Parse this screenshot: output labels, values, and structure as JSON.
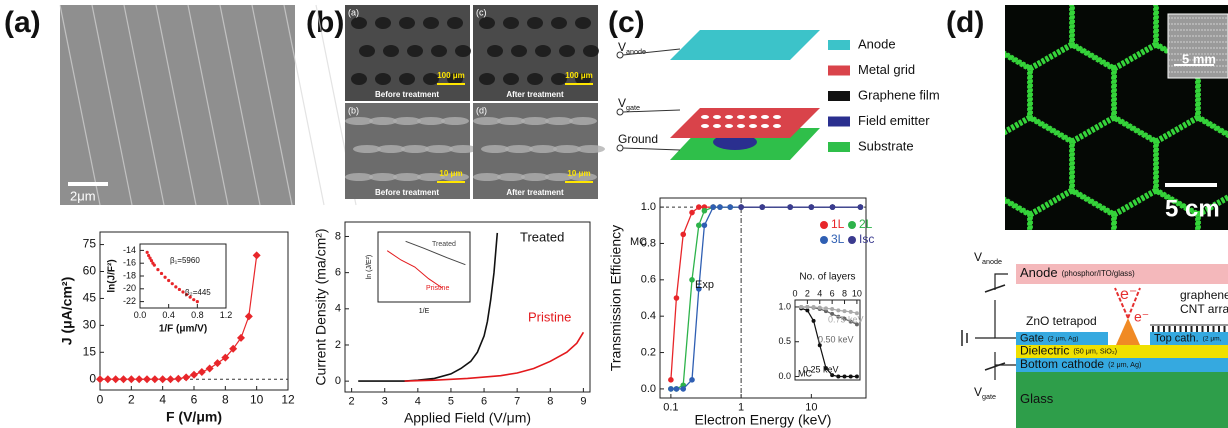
{
  "labels": [
    "(a)",
    "(b)",
    "(c)",
    "(d)"
  ],
  "panel_a": {
    "scale_bar": "2μm"
  },
  "panel_b": {
    "images": [
      {
        "tag": "(a)",
        "caption": "Before treatment",
        "scale_bar": "100 μm"
      },
      {
        "tag": "(c)",
        "caption": "After treatment",
        "scale_bar": "100 μm"
      },
      {
        "tag": "(b)",
        "caption": "Before treatment",
        "scale_bar": "10 μm"
      },
      {
        "tag": "(d)",
        "caption": "After treatment",
        "scale_bar": "10 μm"
      }
    ]
  },
  "panel_c": {
    "terminals": [
      {
        "symbol": "V",
        "sub": "anode"
      },
      {
        "symbol": "V",
        "sub": "gate"
      },
      {
        "symbol": "Ground"
      }
    ],
    "legend": [
      {
        "label": "Anode",
        "color": "#3cc3c9"
      },
      {
        "label": "Metal grid",
        "color": "#d9434a"
      },
      {
        "label": "Graphene film",
        "color": "#111111"
      },
      {
        "label": "Field emitter",
        "color": "#2a2f8f"
      },
      {
        "label": "Substrate",
        "color": "#2fbf4a"
      }
    ]
  },
  "panel_d": {
    "inset_scale_bar": "5 mm",
    "scale_bar": "5 cm",
    "terminals": [
      {
        "symbol": "V",
        "sub": "anode"
      },
      {
        "symbol": "V",
        "sub": "gate"
      }
    ],
    "electrons": [
      "e⁻",
      "e⁻"
    ],
    "callouts": [
      "ZnO tetrapod",
      "graphene",
      "CNT arra"
    ],
    "layers": [
      {
        "name": "Anode",
        "detail": "(phosphor/ITO/glass)",
        "color": "#f4b8bb"
      },
      {
        "name": "Gate",
        "detail": "(2 μm, Ag)",
        "color": "#35a9e0"
      },
      {
        "name": "Top cath.",
        "detail": "(2 μm,",
        "color": "#35a9e0"
      },
      {
        "name": "Dielectric",
        "detail": "(50 μm, SiO₂)",
        "color": "#f0e000"
      },
      {
        "name": "Bottom cathode",
        "detail": "(2 μm, Ag)",
        "color": "#35a9e0"
      },
      {
        "name": "Glass",
        "color": "#2e9e4a"
      }
    ]
  },
  "chart_data": [
    {
      "type": "line",
      "xlabel": "F (V/μm)",
      "ylabel": "J (μA/cm²)",
      "x": [
        0,
        0.5,
        1,
        1.5,
        2,
        2.5,
        3,
        3.5,
        4,
        4.5,
        5,
        5.5,
        6,
        6.5,
        7,
        7.5,
        8,
        8.5,
        9,
        9.5,
        10
      ],
      "series": [
        {
          "color": "#e8262a",
          "values": [
            0,
            0,
            0,
            0,
            0,
            0,
            0,
            0,
            0,
            0,
            0.3,
            1,
            2.5,
            4,
            6,
            9,
            12,
            17,
            23,
            35,
            69
          ]
        }
      ],
      "xlim": [
        0,
        12
      ],
      "xticks": [
        0,
        2,
        4,
        6,
        8,
        10,
        12
      ],
      "ylim": [
        -6,
        82
      ],
      "yticks": [
        0,
        15,
        30,
        45,
        60,
        75
      ],
      "hline": 0
    },
    {
      "type": "scatter",
      "xlabel": "1/F (μm/V)",
      "ylabel": "ln(J/F²)",
      "x": [
        0.1,
        0.12,
        0.14,
        0.16,
        0.18,
        0.2,
        0.25,
        0.3,
        0.35,
        0.4,
        0.45,
        0.5,
        0.55,
        0.6,
        0.65,
        0.7,
        0.75,
        0.8
      ],
      "series": [
        {
          "color": "#e8262a",
          "values": [
            -14.3,
            -14.8,
            -15.2,
            -15.6,
            -16,
            -16.3,
            -17,
            -17.6,
            -18.2,
            -18.7,
            -19.2,
            -19.7,
            -20.1,
            -20.5,
            -20.9,
            -21.3,
            -21.7,
            -22
          ]
        }
      ],
      "xlim": [
        0,
        1.2
      ],
      "xticks": [
        {
          "value": 0,
          "label": "0.0"
        },
        0.4,
        0.8,
        1.2
      ],
      "ylim": [
        -23,
        -13
      ],
      "yticks": [
        -14,
        -16,
        -18,
        -20,
        -22
      ],
      "annotations": [
        "β₁=5960",
        "β₂=445"
      ]
    },
    {
      "type": "line",
      "xlabel": "Applied Field (V/μm)",
      "ylabel": "Current Density (ma/cm²)",
      "series": [
        {
          "name": "Treated",
          "color": "#111111",
          "x": [
            2.2,
            3,
            3.6,
            4,
            4.5,
            5,
            5.3,
            5.6,
            5.8,
            6,
            6.1,
            6.2,
            6.3,
            6.4
          ],
          "values": [
            0,
            0,
            0,
            0.05,
            0.15,
            0.4,
            0.7,
            1.1,
            1.6,
            2.5,
            3.3,
            4.5,
            6,
            8.2
          ]
        },
        {
          "name": "Pristine",
          "color": "#e3191c",
          "x": [
            3.6,
            4.5,
            5.5,
            6.5,
            7,
            7.5,
            8,
            8.5,
            8.8,
            9
          ],
          "values": [
            0,
            0.05,
            0.15,
            0.3,
            0.45,
            0.7,
            1.1,
            1.6,
            2.1,
            2.7
          ]
        }
      ],
      "xlim": [
        1.8,
        9.2
      ],
      "xticks": [
        2,
        3,
        4,
        5,
        6,
        7,
        8,
        9
      ],
      "ylim": [
        -0.6,
        8.8
      ],
      "yticks": [
        0,
        2,
        4,
        6,
        8
      ]
    },
    {
      "type": "line",
      "xlabel": "1/E",
      "ylabel": "ln (J/E²)",
      "series": [
        {
          "name": "Treated",
          "color": "#444444",
          "x": [
            0.16,
            0.2,
            0.25,
            0.29
          ],
          "values": [
            -7,
            -8.5,
            -10.5,
            -12
          ]
        },
        {
          "name": "Pristine",
          "color": "#e3191c",
          "x": [
            0.12,
            0.15,
            0.18,
            0.21,
            0.24
          ],
          "values": [
            -9,
            -11,
            -12.5,
            -15,
            -17
          ]
        }
      ],
      "xlim": [
        0.1,
        0.3
      ],
      "ylim": [
        -20,
        -5
      ]
    },
    {
      "type": "line",
      "xscale": "log",
      "xlabel": "Electron Energy (keV)",
      "ylabel": "Transmission Efficiency",
      "x": [
        0.1,
        0.12,
        0.15,
        0.2,
        0.25,
        0.3,
        0.4,
        0.5,
        0.7,
        1,
        2,
        5,
        10,
        20,
        50
      ],
      "series": [
        {
          "name": "1L",
          "color": "#e8262a",
          "values": [
            0.05,
            0.5,
            0.85,
            0.97,
            1,
            1,
            1,
            1,
            1,
            1,
            1,
            1,
            1,
            1,
            1
          ]
        },
        {
          "name": "2L",
          "color": "#2db34a",
          "values": [
            0,
            0,
            0.02,
            0.6,
            0.9,
            0.98,
            1,
            1,
            1,
            1,
            1,
            1,
            1,
            1,
            1
          ]
        },
        {
          "name": "3L",
          "color": "#2f5fb3",
          "values": [
            0,
            0,
            0,
            0.05,
            0.55,
            0.9,
            1,
            1,
            1,
            1,
            1,
            1,
            1,
            1,
            1
          ]
        },
        {
          "name": "Isc",
          "color": "#3b3b8f",
          "values": [
            null,
            null,
            null,
            null,
            null,
            null,
            null,
            null,
            null,
            1,
            1,
            1,
            1,
            1,
            1
          ]
        }
      ],
      "xlim": [
        0.07,
        60
      ],
      "xticks": [
        0.1,
        1,
        10
      ],
      "ylim": [
        -0.05,
        1.05
      ],
      "yticks": [
        {
          "value": 0,
          "label": "0.0"
        },
        0.2,
        0.4,
        0.6,
        0.8,
        {
          "value": 1,
          "label": "1.0"
        }
      ],
      "hline": 1,
      "vline": 1,
      "annotations": [
        "MC",
        "Exp"
      ]
    },
    {
      "type": "line",
      "xlabel": "No. of layers",
      "x": [
        1,
        2,
        3,
        4,
        5,
        6,
        7,
        8,
        9,
        10
      ],
      "series": [
        {
          "name": "0.25 keV",
          "color": "#111111",
          "values": [
            0.98,
            0.95,
            0.8,
            0.45,
            0.12,
            0.02,
            0,
            0,
            0,
            0
          ]
        },
        {
          "name": "0.50 keV",
          "color": "#666666",
          "values": [
            1,
            1,
            0.99,
            0.97,
            0.94,
            0.9,
            0.86,
            0.83,
            0.79,
            0.75
          ]
        },
        {
          "name": "0.75 keV",
          "color": "#aaaaaa",
          "values": [
            1,
            1,
            1,
            0.99,
            0.98,
            0.97,
            0.95,
            0.94,
            0.93,
            0.91
          ]
        }
      ],
      "xlim": [
        0,
        10.5
      ],
      "xticks": [
        0,
        2,
        4,
        6,
        8,
        10
      ],
      "ylim": [
        -0.05,
        1.1
      ],
      "yticks": [
        {
          "value": 0,
          "label": "0.0"
        },
        0.5,
        {
          "value": 1,
          "label": "1.0"
        }
      ],
      "annotations": [
        "MC"
      ]
    }
  ]
}
